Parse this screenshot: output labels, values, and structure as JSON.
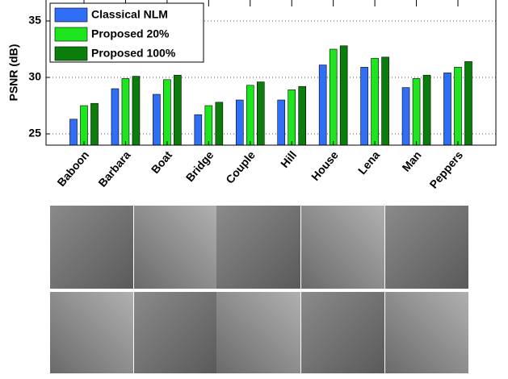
{
  "chart_data": {
    "type": "bar",
    "y_label": "PSNR (dB)",
    "categories": [
      "Baboon",
      "Barbara",
      "Boat",
      "Bridge",
      "Couple",
      "Hill",
      "House",
      "Lena",
      "Man",
      "Peppers"
    ],
    "series": [
      {
        "name": "Classical NLM",
        "color": "#2f6ef5",
        "values": [
          26.3,
          29.0,
          28.5,
          26.7,
          28.0,
          28.0,
          31.1,
          30.9,
          29.1,
          30.4
        ]
      },
      {
        "name": "Proposed 20%",
        "color": "#1ee61e",
        "values": [
          27.5,
          29.9,
          29.8,
          27.5,
          29.3,
          28.9,
          32.5,
          31.7,
          29.9,
          30.9
        ]
      },
      {
        "name": "Proposed 100%",
        "color": "#0b7d0b",
        "values": [
          27.7,
          30.1,
          30.2,
          27.8,
          29.6,
          29.2,
          32.8,
          31.8,
          30.2,
          31.4
        ]
      }
    ],
    "ylim": [
      24,
      37
    ],
    "yticks": [
      25,
      30,
      35
    ],
    "grid": true,
    "legend": "upper-left"
  }
}
